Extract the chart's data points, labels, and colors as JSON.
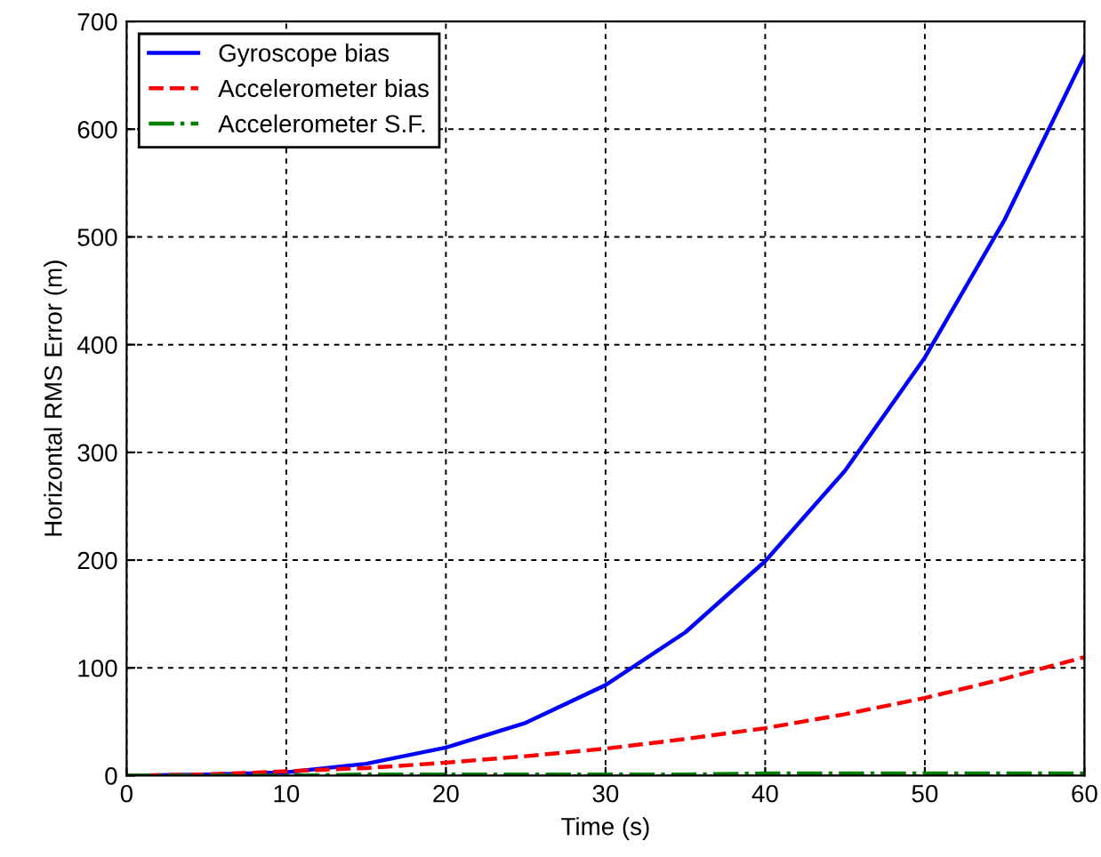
{
  "chart_data": {
    "type": "line",
    "xlabel": "Time (s)",
    "ylabel": "Horizontal RMS Error (m)",
    "x": [
      0,
      5,
      10,
      15,
      20,
      25,
      30,
      35,
      40,
      45,
      50,
      55,
      60
    ],
    "series": [
      {
        "name": "Gyroscope bias",
        "color": "#0000ff",
        "line_style": "solid",
        "values": [
          0,
          1,
          3,
          11,
          26,
          49,
          84,
          133,
          199,
          283,
          388,
          516,
          668
        ]
      },
      {
        "name": "Accelerometer bias",
        "color": "#ff0000",
        "line_style": "dashed",
        "values": [
          0,
          1,
          4,
          7,
          12,
          18,
          25,
          34,
          44,
          57,
          72,
          90,
          110
        ]
      },
      {
        "name": "Accelerometer S.F.",
        "color": "#008000",
        "line_style": "dashdot",
        "values": [
          0,
          0,
          0,
          1,
          1,
          1,
          1,
          1,
          2,
          2,
          2,
          2,
          2
        ]
      }
    ],
    "xlim": [
      0,
      60
    ],
    "ylim": [
      0,
      700
    ],
    "xticks": [
      0,
      10,
      20,
      30,
      40,
      50,
      60
    ],
    "yticks": [
      0,
      100,
      200,
      300,
      400,
      500,
      600,
      700
    ],
    "grid": true,
    "legend": "top left",
    "marker": "none"
  }
}
